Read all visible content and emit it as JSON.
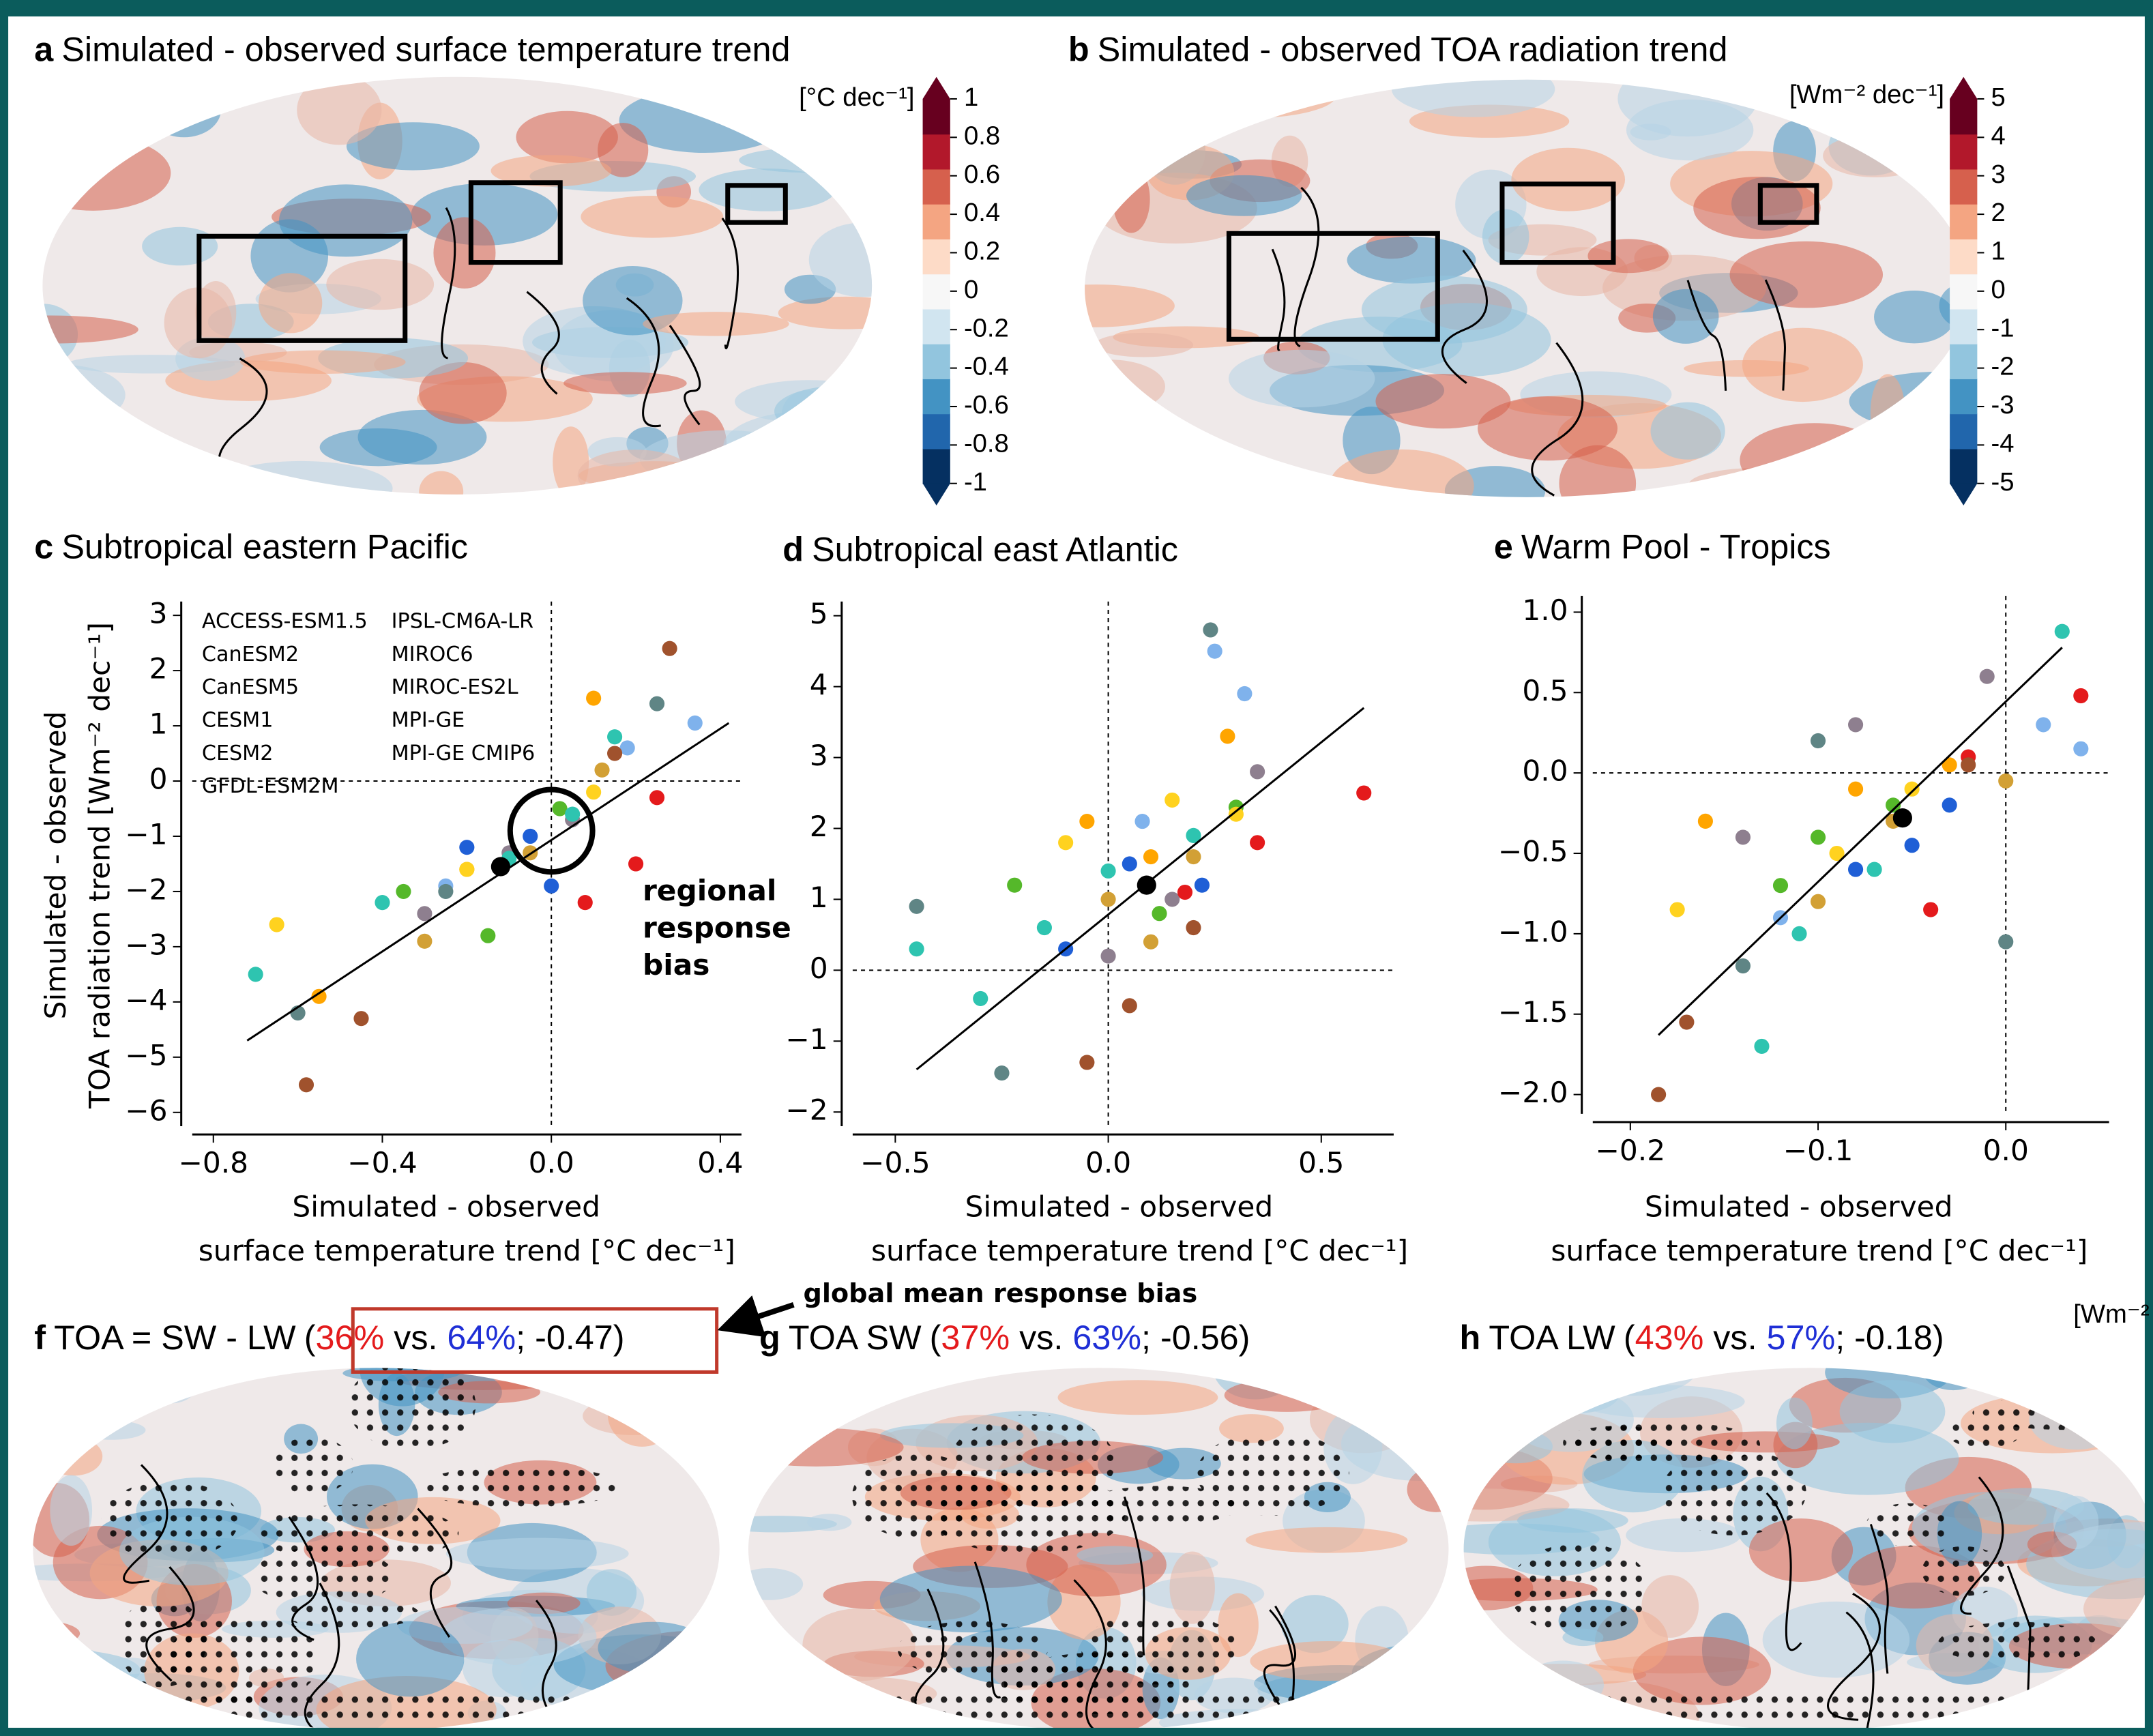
{
  "chart_data": [
    {
      "type": "map",
      "panel": "a",
      "title": "Simulated - observed surface temperature trend"
    },
    {
      "type": "colorbar",
      "label": "[°C dec⁻¹]",
      "ylim": [
        -1,
        1
      ],
      "yticks": [
        1,
        0.8,
        0.6,
        0.4,
        0.2,
        0,
        -0.2,
        -0.4,
        -0.6,
        -0.8,
        -1
      ],
      "colors": [
        "#053061",
        "#2166ac",
        "#4393c3",
        "#92c5de",
        "#d1e5f0",
        "#f7f7f7",
        "#fddbc7",
        "#f4a582",
        "#d6604d",
        "#b2182b",
        "#67001f"
      ]
    },
    {
      "type": "map",
      "panel": "b",
      "title": "Simulated - observed TOA radiation trend"
    },
    {
      "type": "colorbar",
      "label": "[Wm⁻² dec⁻¹]",
      "ylim": [
        -5,
        5
      ],
      "yticks": [
        5,
        4,
        3,
        2,
        1,
        0,
        -1,
        -2,
        -3,
        -4,
        -5
      ],
      "colors": [
        "#053061",
        "#2166ac",
        "#4393c3",
        "#92c5de",
        "#d1e5f0",
        "#f7f7f7",
        "#fddbc7",
        "#f4a582",
        "#d6604d",
        "#b2182b",
        "#67001f"
      ]
    },
    {
      "type": "scatter",
      "panel": "c",
      "title": "Subtropical eastern Pacific",
      "xlabel": [
        "Simulated - observed",
        "surface temperature trend [°C dec⁻¹]"
      ],
      "ylabel": [
        "Simulated - observed",
        "TOA radiation trend [Wm⁻² dec⁻¹]"
      ],
      "xlim": [
        -0.85,
        0.45
      ],
      "ylim": [
        -6.25,
        3.25
      ],
      "xticks": [
        {
          "value": -0.8,
          "label": "−0.8"
        },
        {
          "value": -0.4,
          "label": "−0.4"
        },
        {
          "value": 0,
          "label": "0.0"
        },
        {
          "value": 0.4,
          "label": "0.4"
        }
      ],
      "yticks": [
        3,
        2,
        1,
        0,
        {
          "value": -1,
          "label": "−1"
        },
        {
          "value": -2,
          "label": "−2"
        },
        {
          "value": -3,
          "label": "−3"
        },
        {
          "value": -4,
          "label": "−4"
        },
        {
          "value": -5,
          "label": "−5"
        },
        {
          "value": -6,
          "label": "−6"
        }
      ],
      "legend": "upper left",
      "series": [
        {
          "name": "ACCESS-ESM1.5",
          "color": "#7fb2ec",
          "x": [
            0.34,
            0.18,
            -0.25
          ],
          "y": [
            1.05,
            0.6,
            -1.9
          ]
        },
        {
          "name": "CanESM2",
          "color": "#8e7f8f",
          "x": [
            -0.3,
            0.05,
            -0.1
          ],
          "y": [
            -2.4,
            -0.7,
            -1.3
          ]
        },
        {
          "name": "CanESM5",
          "color": "#e41a1c",
          "x": [
            0.2,
            0.08,
            0.25
          ],
          "y": [
            -1.5,
            -2.2,
            -0.3
          ]
        },
        {
          "name": "CESM1",
          "color": "#ffa500",
          "x": [
            0.1,
            -0.55,
            -0.2
          ],
          "y": [
            1.5,
            -3.9,
            -1.6
          ]
        },
        {
          "name": "CESM2",
          "color": "#a0522d",
          "x": [
            0.28,
            -0.58,
            -0.45,
            0.15
          ],
          "y": [
            2.4,
            -5.5,
            -4.3,
            0.5
          ]
        },
        {
          "name": "GFDL-ESM2M",
          "color": "#55b82a",
          "x": [
            -0.15,
            0.02,
            -0.35
          ],
          "y": [
            -2.8,
            -0.5,
            -2.0
          ]
        },
        {
          "name": "IPSL-CM6A-LR",
          "color": "#1f5fd6",
          "x": [
            -0.05,
            -0.2,
            0.0
          ],
          "y": [
            -1.0,
            -1.2,
            -1.9
          ]
        },
        {
          "name": "MIROC6",
          "color": "#ffd21f",
          "x": [
            -0.2,
            -0.65,
            0.1
          ],
          "y": [
            -1.6,
            -2.6,
            -0.2
          ]
        },
        {
          "name": "MIROC-ES2L",
          "color": "#d2a035",
          "x": [
            -0.05,
            -0.3,
            0.12
          ],
          "y": [
            -1.3,
            -2.9,
            0.2
          ]
        },
        {
          "name": "MPI-GE",
          "color": "#2ec4b0",
          "x": [
            -0.7,
            -0.4,
            -0.1,
            0.05,
            0.15
          ],
          "y": [
            -3.5,
            -2.2,
            -1.4,
            -0.6,
            0.8
          ]
        },
        {
          "name": "MPI-GE CMIP6",
          "color": "#5f8585",
          "x": [
            -0.6,
            -0.25,
            0.25
          ],
          "y": [
            -4.2,
            -2.0,
            1.4
          ]
        }
      ],
      "mean": {
        "x": -0.12,
        "y": -1.55,
        "color": "#000000"
      },
      "fit_line": {
        "x": [
          -0.72,
          0.42
        ],
        "y": [
          -4.7,
          1.05
        ]
      },
      "reference_lines": {
        "x": 0,
        "y": 0
      },
      "highlight_circle": {
        "x": 0,
        "y": -0.9
      },
      "annotation": [
        "regional",
        "response",
        "bias"
      ]
    },
    {
      "type": "scatter",
      "panel": "d",
      "title": "Subtropical east Atlantic",
      "xlabel": [
        "Simulated - observed",
        "surface temperature trend [°C dec⁻¹]"
      ],
      "xlim": [
        -0.6,
        0.67
      ],
      "ylim": [
        -2.2,
        5.2
      ],
      "xticks": [
        {
          "value": -0.5,
          "label": "−0.5"
        },
        {
          "value": 0,
          "label": "0.0"
        },
        {
          "value": 0.5,
          "label": "0.5"
        }
      ],
      "yticks": [
        5,
        4,
        3,
        2,
        1,
        0,
        {
          "value": -1,
          "label": "−1"
        },
        {
          "value": -2,
          "label": "−2"
        }
      ],
      "series": [
        {
          "color": "#7fb2ec",
          "x": [
            0.25,
            0.32,
            0.08
          ],
          "y": [
            4.5,
            3.9,
            2.1
          ]
        },
        {
          "color": "#8e7f8f",
          "x": [
            0.0,
            0.15,
            0.35
          ],
          "y": [
            0.2,
            1.0,
            2.8
          ]
        },
        {
          "color": "#e41a1c",
          "x": [
            0.6,
            0.35,
            0.18
          ],
          "y": [
            2.5,
            1.8,
            1.1
          ]
        },
        {
          "color": "#ffa500",
          "x": [
            0.1,
            -0.05,
            0.28
          ],
          "y": [
            1.6,
            2.1,
            3.3
          ]
        },
        {
          "color": "#a0522d",
          "x": [
            -0.05,
            0.05,
            0.2
          ],
          "y": [
            -1.3,
            -0.5,
            0.6
          ]
        },
        {
          "color": "#55b82a",
          "x": [
            -0.22,
            0.12,
            0.3
          ],
          "y": [
            1.2,
            0.8,
            2.3
          ]
        },
        {
          "color": "#1f5fd6",
          "x": [
            0.05,
            -0.1,
            0.22
          ],
          "y": [
            1.5,
            0.3,
            1.2
          ]
        },
        {
          "color": "#ffd21f",
          "x": [
            -0.1,
            0.15,
            0.3
          ],
          "y": [
            1.8,
            2.4,
            2.2
          ]
        },
        {
          "color": "#d2a035",
          "x": [
            0.0,
            0.2,
            0.1
          ],
          "y": [
            1.0,
            1.6,
            0.4
          ]
        },
        {
          "color": "#2ec4b0",
          "x": [
            -0.45,
            -0.3,
            -0.15,
            0.0,
            0.2
          ],
          "y": [
            0.3,
            -0.4,
            0.6,
            1.4,
            1.9
          ]
        },
        {
          "color": "#5f8585",
          "x": [
            -0.45,
            0.24,
            -0.25
          ],
          "y": [
            0.9,
            4.8,
            -1.45
          ]
        }
      ],
      "mean": {
        "x": 0.09,
        "y": 1.2,
        "color": "#000000"
      },
      "fit_line": {
        "x": [
          -0.45,
          0.6
        ],
        "y": [
          -1.4,
          3.7
        ]
      },
      "reference_lines": {
        "x": 0,
        "y": 0
      }
    },
    {
      "type": "scatter",
      "panel": "e",
      "title": "Warm Pool - Tropics",
      "xlabel": [
        "Simulated - observed",
        "surface temperature trend [°C dec⁻¹]"
      ],
      "xlim": [
        -0.22,
        0.055
      ],
      "ylim": [
        -2.12,
        1.1
      ],
      "xticks": [
        {
          "value": -0.2,
          "label": "−0.2"
        },
        {
          "value": -0.1,
          "label": "−0.1"
        },
        {
          "value": 0,
          "label": "0.0"
        }
      ],
      "yticks": [
        {
          "value": 1,
          "label": "1.0"
        },
        0.5,
        {
          "value": 0,
          "label": "0.0"
        },
        {
          "value": -0.5,
          "label": "−0.5"
        },
        {
          "value": -1,
          "label": "−1.0"
        },
        {
          "value": -1.5,
          "label": "−1.5"
        },
        {
          "value": -2,
          "label": "−2.0"
        }
      ],
      "series": [
        {
          "color": "#7fb2ec",
          "x": [
            0.04,
            0.02,
            -0.12
          ],
          "y": [
            0.15,
            0.3,
            -0.9
          ]
        },
        {
          "color": "#8e7f8f",
          "x": [
            -0.01,
            -0.08,
            -0.14
          ],
          "y": [
            0.6,
            0.3,
            -0.4
          ]
        },
        {
          "color": "#e41a1c",
          "x": [
            0.04,
            -0.04,
            -0.02
          ],
          "y": [
            0.48,
            -0.85,
            0.1
          ]
        },
        {
          "color": "#ffa500",
          "x": [
            -0.16,
            -0.08,
            -0.03
          ],
          "y": [
            -0.3,
            -0.1,
            0.05
          ]
        },
        {
          "color": "#a0522d",
          "x": [
            -0.185,
            -0.17,
            -0.02
          ],
          "y": [
            -2.0,
            -1.55,
            0.05
          ]
        },
        {
          "color": "#55b82a",
          "x": [
            -0.1,
            -0.06,
            -0.12
          ],
          "y": [
            -0.4,
            -0.2,
            -0.7
          ]
        },
        {
          "color": "#1f5fd6",
          "x": [
            -0.05,
            -0.08,
            -0.03
          ],
          "y": [
            -0.45,
            -0.6,
            -0.2
          ]
        },
        {
          "color": "#ffd21f",
          "x": [
            -0.175,
            -0.09,
            -0.05
          ],
          "y": [
            -0.85,
            -0.5,
            -0.1
          ]
        },
        {
          "color": "#d2a035",
          "x": [
            -0.06,
            -0.1,
            0.0
          ],
          "y": [
            -0.3,
            -0.8,
            -0.05
          ]
        },
        {
          "color": "#2ec4b0",
          "x": [
            -0.13,
            -0.11,
            0.03,
            -0.07
          ],
          "y": [
            -1.7,
            -1.0,
            0.88,
            -0.6
          ]
        },
        {
          "color": "#5f8585",
          "x": [
            -0.14,
            0.0,
            -0.1
          ],
          "y": [
            -1.2,
            -1.05,
            0.2
          ]
        }
      ],
      "mean": {
        "x": -0.055,
        "y": -0.28,
        "color": "#000000"
      },
      "fit_line": {
        "x": [
          -0.185,
          0.03
        ],
        "y": [
          -1.63,
          0.78
        ]
      },
      "reference_lines": {
        "x": 0,
        "y": 0
      }
    },
    {
      "type": "map",
      "panel": "f",
      "title": "TOA = SW - LW",
      "title_parts": [
        "(",
        "36%",
        " vs. ",
        "64%",
        "; -0.47)"
      ],
      "title_part_colors": [
        "#000000",
        "#e41a1c",
        "#000000",
        "#1f2fd6",
        "#000000"
      ],
      "annotation": "global mean response bias",
      "stippling": true
    },
    {
      "type": "map",
      "panel": "g",
      "title": "TOA  SW",
      "title_parts": [
        "(",
        "37%",
        " vs. ",
        "63%",
        "; -0.56)"
      ],
      "title_part_colors": [
        "#000000",
        "#e41a1c",
        "#000000",
        "#1f2fd6",
        "#000000"
      ],
      "stippling": true
    },
    {
      "type": "map",
      "panel": "h",
      "title": "TOA  LW",
      "title_parts": [
        "(",
        "43%",
        " vs. ",
        "57%",
        "; -0.18)"
      ],
      "title_part_colors": [
        "#000000",
        "#e41a1c",
        "#000000",
        "#1f2fd6",
        "#000000"
      ],
      "stippling": true,
      "unit": "[Wm⁻²"
    }
  ]
}
